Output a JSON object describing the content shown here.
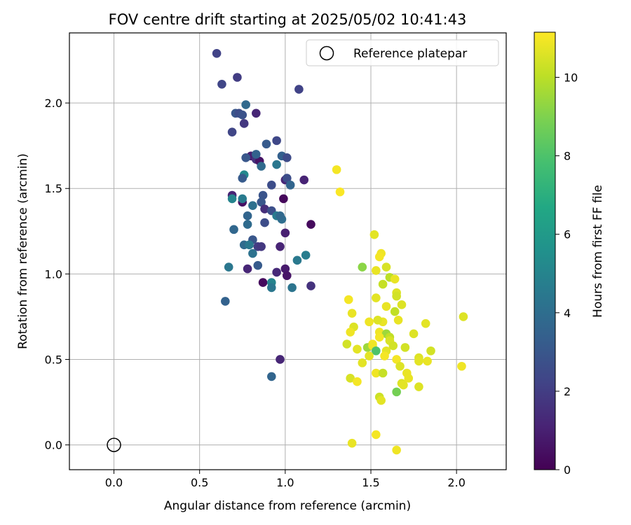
{
  "chart_data": {
    "type": "scatter",
    "title": "FOV centre drift starting at 2025/05/02 10:41:43",
    "xlabel": "Angular distance from reference (arcmin)",
    "ylabel": "Rotation from reference (arcmin)",
    "xlim": [
      -0.26,
      2.29
    ],
    "ylim": [
      -0.145,
      2.41
    ],
    "xticks": [
      "0.0",
      "0.5",
      "1.0",
      "1.5",
      "2.0"
    ],
    "yticks": [
      "0.0",
      "0.5",
      "1.0",
      "1.5",
      "2.0"
    ],
    "grid": true,
    "legend_position": "top-right",
    "legend": [
      {
        "label": "Reference platepar",
        "marker": "open-circle"
      }
    ],
    "reference": {
      "x": 0.0,
      "y": 0.0
    },
    "colorbar": {
      "label": "Hours from first FF file",
      "colormap": "viridis",
      "range": [
        0,
        11.15
      ],
      "ticks": [
        "0",
        "2",
        "4",
        "6",
        "8",
        "10"
      ]
    },
    "series": [
      {
        "points": [
          [
            0.6,
            2.29,
            2.2
          ],
          [
            0.72,
            2.15,
            2.0
          ],
          [
            0.63,
            2.11,
            2.3
          ],
          [
            1.08,
            2.08,
            2.2
          ],
          [
            0.77,
            1.99,
            3.8
          ],
          [
            0.71,
            1.94,
            3.0
          ],
          [
            0.73,
            1.94,
            2.6
          ],
          [
            0.75,
            1.93,
            2.8
          ],
          [
            0.83,
            1.94,
            1.2
          ],
          [
            0.76,
            1.88,
            1.8
          ],
          [
            0.69,
            1.83,
            2.3
          ],
          [
            0.95,
            1.78,
            2.4
          ],
          [
            0.89,
            1.76,
            3.2
          ],
          [
            0.8,
            1.69,
            1.0
          ],
          [
            0.83,
            1.67,
            1.6
          ],
          [
            0.85,
            1.66,
            0.6
          ],
          [
            0.77,
            1.68,
            3.0
          ],
          [
            0.83,
            1.7,
            3.5
          ],
          [
            0.98,
            1.69,
            3.4
          ],
          [
            1.01,
            1.68,
            2.5
          ],
          [
            0.86,
            1.63,
            3.9
          ],
          [
            0.95,
            1.64,
            4.4
          ],
          [
            0.76,
            1.58,
            5.2
          ],
          [
            0.75,
            1.56,
            3.2
          ],
          [
            1.0,
            1.55,
            1.2
          ],
          [
            1.01,
            1.56,
            2.6
          ],
          [
            1.11,
            1.55,
            1.1
          ],
          [
            0.92,
            1.52,
            2.6
          ],
          [
            1.03,
            1.52,
            3.6
          ],
          [
            0.69,
            1.46,
            1.1
          ],
          [
            0.75,
            1.42,
            0.5
          ],
          [
            0.69,
            1.44,
            5.0
          ],
          [
            0.75,
            1.44,
            4.6
          ],
          [
            0.81,
            1.4,
            4.1
          ],
          [
            0.87,
            1.46,
            2.9
          ],
          [
            0.99,
            1.44,
            0.2
          ],
          [
            0.86,
            1.42,
            3.0
          ],
          [
            0.88,
            1.38,
            1.5
          ],
          [
            0.92,
            1.37,
            2.7
          ],
          [
            0.95,
            1.34,
            4.6
          ],
          [
            0.98,
            1.32,
            4.0
          ],
          [
            0.97,
            1.34,
            3.8
          ],
          [
            0.78,
            1.34,
            3.6
          ],
          [
            0.88,
            1.3,
            2.6
          ],
          [
            0.78,
            1.29,
            3.9
          ],
          [
            0.7,
            1.26,
            3.7
          ],
          [
            1.0,
            1.24,
            1.0
          ],
          [
            1.15,
            1.29,
            0.3
          ],
          [
            0.81,
            1.2,
            3.0
          ],
          [
            0.84,
            1.16,
            2.0
          ],
          [
            0.81,
            1.12,
            4.2
          ],
          [
            0.76,
            1.17,
            3.9
          ],
          [
            0.86,
            1.16,
            1.8
          ],
          [
            0.79,
            1.17,
            4.5
          ],
          [
            0.97,
            1.16,
            1.1
          ],
          [
            1.12,
            1.11,
            4.7
          ],
          [
            1.07,
            1.08,
            4.5
          ],
          [
            0.67,
            1.04,
            4.4
          ],
          [
            0.78,
            1.03,
            1.2
          ],
          [
            0.84,
            1.05,
            3.2
          ],
          [
            0.95,
            1.01,
            1.3
          ],
          [
            1.0,
            1.03,
            0.8
          ],
          [
            1.01,
            0.99,
            0.6
          ],
          [
            0.87,
            0.95,
            0.3
          ],
          [
            0.92,
            0.95,
            5.0
          ],
          [
            0.92,
            0.92,
            4.4
          ],
          [
            1.04,
            0.92,
            4.3
          ],
          [
            1.15,
            0.93,
            1.6
          ],
          [
            0.65,
            0.84,
            3.5
          ],
          [
            0.97,
            0.5,
            1.2
          ],
          [
            0.92,
            0.4,
            3.6
          ],
          [
            1.3,
            1.61,
            11.0
          ],
          [
            1.32,
            1.48,
            11.1
          ],
          [
            1.52,
            1.23,
            10.7
          ],
          [
            1.56,
            1.12,
            10.9
          ],
          [
            1.55,
            1.1,
            11.0
          ],
          [
            1.59,
            1.04,
            10.5
          ],
          [
            1.45,
            1.04,
            9.2
          ],
          [
            1.53,
            1.02,
            10.8
          ],
          [
            1.61,
            0.98,
            10.0
          ],
          [
            1.64,
            0.97,
            10.8
          ],
          [
            1.57,
            0.94,
            10.2
          ],
          [
            1.65,
            0.89,
            10.6
          ],
          [
            1.65,
            0.87,
            10.4
          ],
          [
            1.37,
            0.85,
            11.0
          ],
          [
            1.53,
            0.86,
            10.7
          ],
          [
            1.68,
            0.82,
            10.6
          ],
          [
            1.59,
            0.81,
            10.8
          ],
          [
            1.64,
            0.78,
            10.1
          ],
          [
            1.39,
            0.77,
            10.8
          ],
          [
            1.66,
            0.73,
            10.8
          ],
          [
            1.57,
            0.72,
            10.8
          ],
          [
            1.49,
            0.72,
            10.9
          ],
          [
            1.54,
            0.73,
            10.6
          ],
          [
            1.4,
            0.69,
            10.6
          ],
          [
            1.38,
            0.66,
            10.9
          ],
          [
            1.55,
            0.66,
            10.9
          ],
          [
            1.59,
            0.65,
            9.5
          ],
          [
            1.61,
            0.63,
            10.1
          ],
          [
            1.61,
            0.61,
            10.5
          ],
          [
            1.55,
            0.63,
            11.0
          ],
          [
            1.82,
            0.71,
            10.7
          ],
          [
            1.75,
            0.65,
            10.6
          ],
          [
            1.36,
            0.59,
            10.4
          ],
          [
            1.51,
            0.59,
            11.0
          ],
          [
            1.48,
            0.57,
            9.5
          ],
          [
            1.51,
            0.58,
            10.9
          ],
          [
            1.42,
            0.56,
            10.7
          ],
          [
            1.59,
            0.55,
            10.7
          ],
          [
            1.63,
            0.58,
            10.4
          ],
          [
            1.7,
            0.57,
            10.4
          ],
          [
            1.58,
            0.52,
            11.0
          ],
          [
            1.53,
            0.55,
            8.0
          ],
          [
            1.65,
            0.5,
            11.0
          ],
          [
            1.49,
            0.52,
            10.7
          ],
          [
            1.85,
            0.55,
            10.4
          ],
          [
            1.78,
            0.51,
            10.6
          ],
          [
            1.78,
            0.49,
            10.7
          ],
          [
            1.83,
            0.49,
            10.8
          ],
          [
            1.45,
            0.48,
            10.7
          ],
          [
            1.67,
            0.46,
            10.6
          ],
          [
            1.53,
            0.42,
            10.9
          ],
          [
            1.57,
            0.42,
            10.2
          ],
          [
            1.71,
            0.42,
            10.8
          ],
          [
            1.72,
            0.39,
            10.8
          ],
          [
            1.68,
            0.36,
            10.6
          ],
          [
            1.69,
            0.35,
            10.7
          ],
          [
            1.38,
            0.39,
            10.5
          ],
          [
            1.42,
            0.37,
            11.0
          ],
          [
            1.78,
            0.34,
            10.6
          ],
          [
            1.65,
            0.31,
            8.8
          ],
          [
            1.55,
            0.28,
            10.3
          ],
          [
            1.56,
            0.26,
            10.7
          ],
          [
            1.53,
            0.06,
            11.0
          ],
          [
            1.39,
            0.01,
            10.8
          ],
          [
            1.65,
            -0.03,
            10.9
          ],
          [
            2.03,
            0.46,
            10.9
          ],
          [
            2.04,
            0.75,
            10.6
          ]
        ]
      }
    ]
  }
}
